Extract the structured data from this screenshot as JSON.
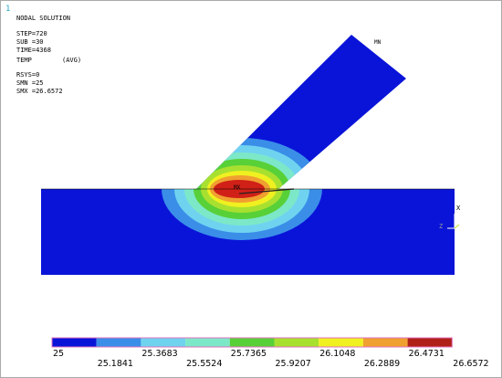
{
  "header": {
    "marker": "1",
    "lines": [
      "NODAL SOLUTION",
      "STEP=720",
      "SUB =30",
      "TIME=4368",
      "TEMP",
      "(AVG)",
      "RSYS=0",
      "SMN =25",
      "SMX =26.6572"
    ]
  },
  "model": {
    "min_label": "MN",
    "max_label": "MX",
    "axis_x": "X",
    "axis_z": "Z"
  },
  "legend": {
    "labels": [
      "25",
      "25.1841",
      "25.3683",
      "25.5524",
      "25.7365",
      "25.9207",
      "26.1048",
      "26.2889",
      "26.4731",
      "26.6572"
    ]
  }
}
